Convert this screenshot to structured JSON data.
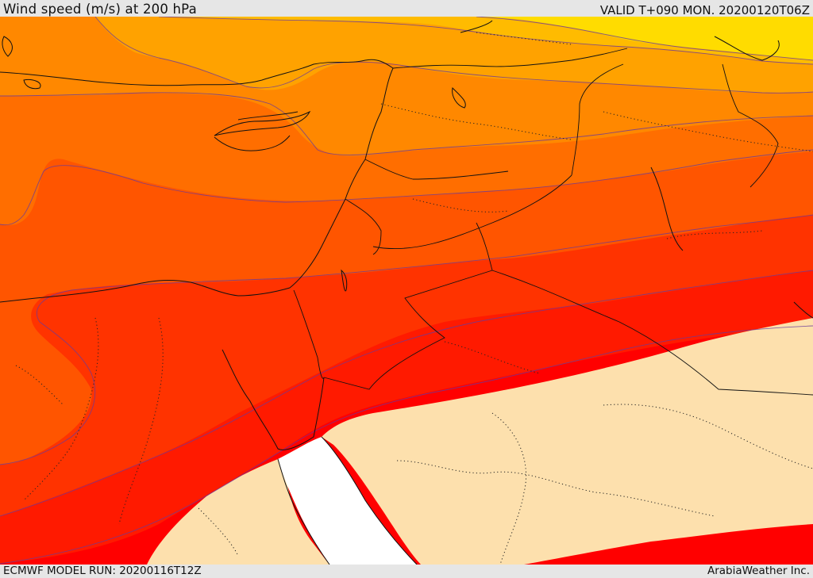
{
  "header": {
    "title": "Wind speed (m/s) at 200 hPa",
    "valid_time": "VALID T+090 MON. 20200120T06Z"
  },
  "footer": {
    "model_run": "ECMWF MODEL RUN: 20200116T12Z",
    "credit": "ArabiaWeather Inc."
  },
  "map": {
    "field": "wind speed at 200 hPa",
    "palette": {
      "band_yellow": "#ffd800",
      "band_light_orange": "#ffbb00",
      "band_orange": "#ff9900",
      "band_dark_orange": "#ff7700",
      "band_orange_red": "#ff5500",
      "band_red_orange": "#ff3300",
      "band_red": "#ff1100",
      "band_bright_red": "#ff0000",
      "calm_region": "#fde0ad",
      "no_data": "#ffffff"
    }
  }
}
